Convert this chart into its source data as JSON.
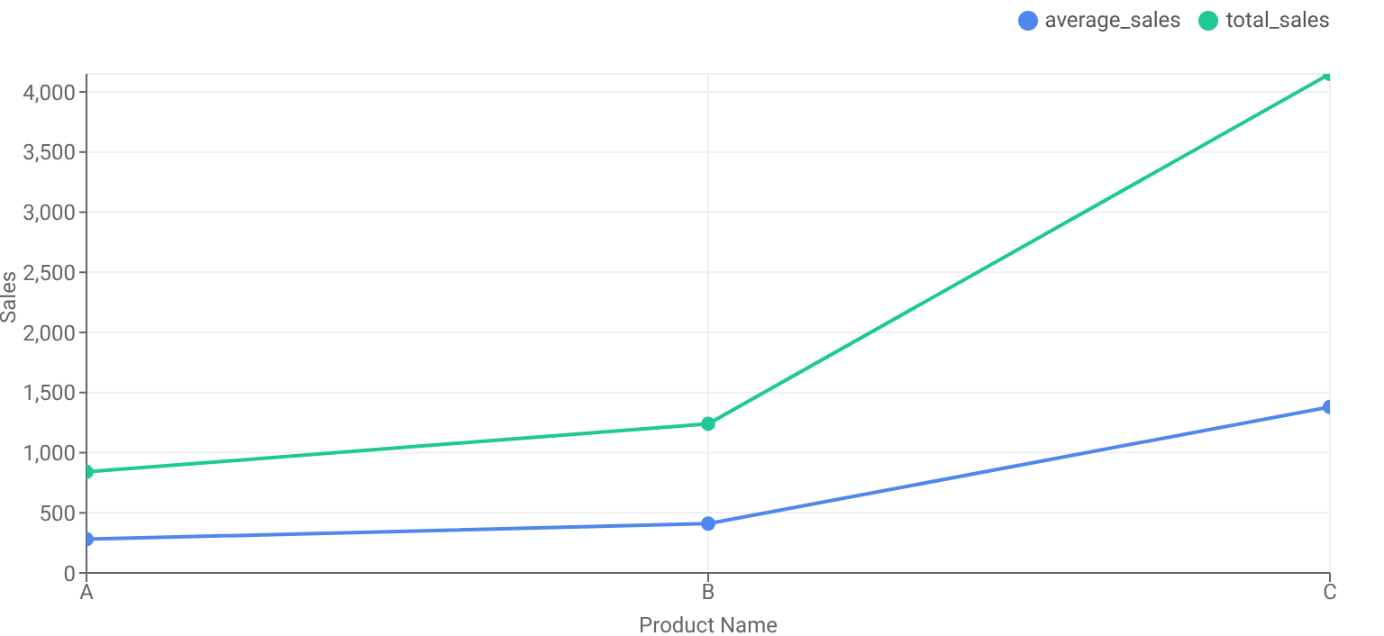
{
  "chart_data": {
    "type": "line",
    "xlabel": "Product Name",
    "ylabel": "Sales",
    "categories": [
      "A",
      "B",
      "C"
    ],
    "series": [
      {
        "name": "average_sales",
        "color": "#5087ec",
        "values": [
          280,
          410,
          1380
        ]
      },
      {
        "name": "total_sales",
        "color": "#1dc995",
        "values": [
          840,
          1240,
          4150
        ]
      }
    ],
    "ylim": [
      0,
      4150
    ],
    "yticks": [
      0,
      500,
      {
        "value": 1000,
        "label": "1,000"
      },
      {
        "value": 1500,
        "label": "1,500"
      },
      {
        "value": 2000,
        "label": "2,000"
      },
      {
        "value": 2500,
        "label": "2,500"
      },
      {
        "value": 3000,
        "label": "3,000"
      },
      {
        "value": 3500,
        "label": "3,500"
      },
      {
        "value": 4000,
        "label": "4,000"
      }
    ],
    "grid": true,
    "legend": "top right",
    "marker": "circle",
    "line_style": "solid"
  }
}
